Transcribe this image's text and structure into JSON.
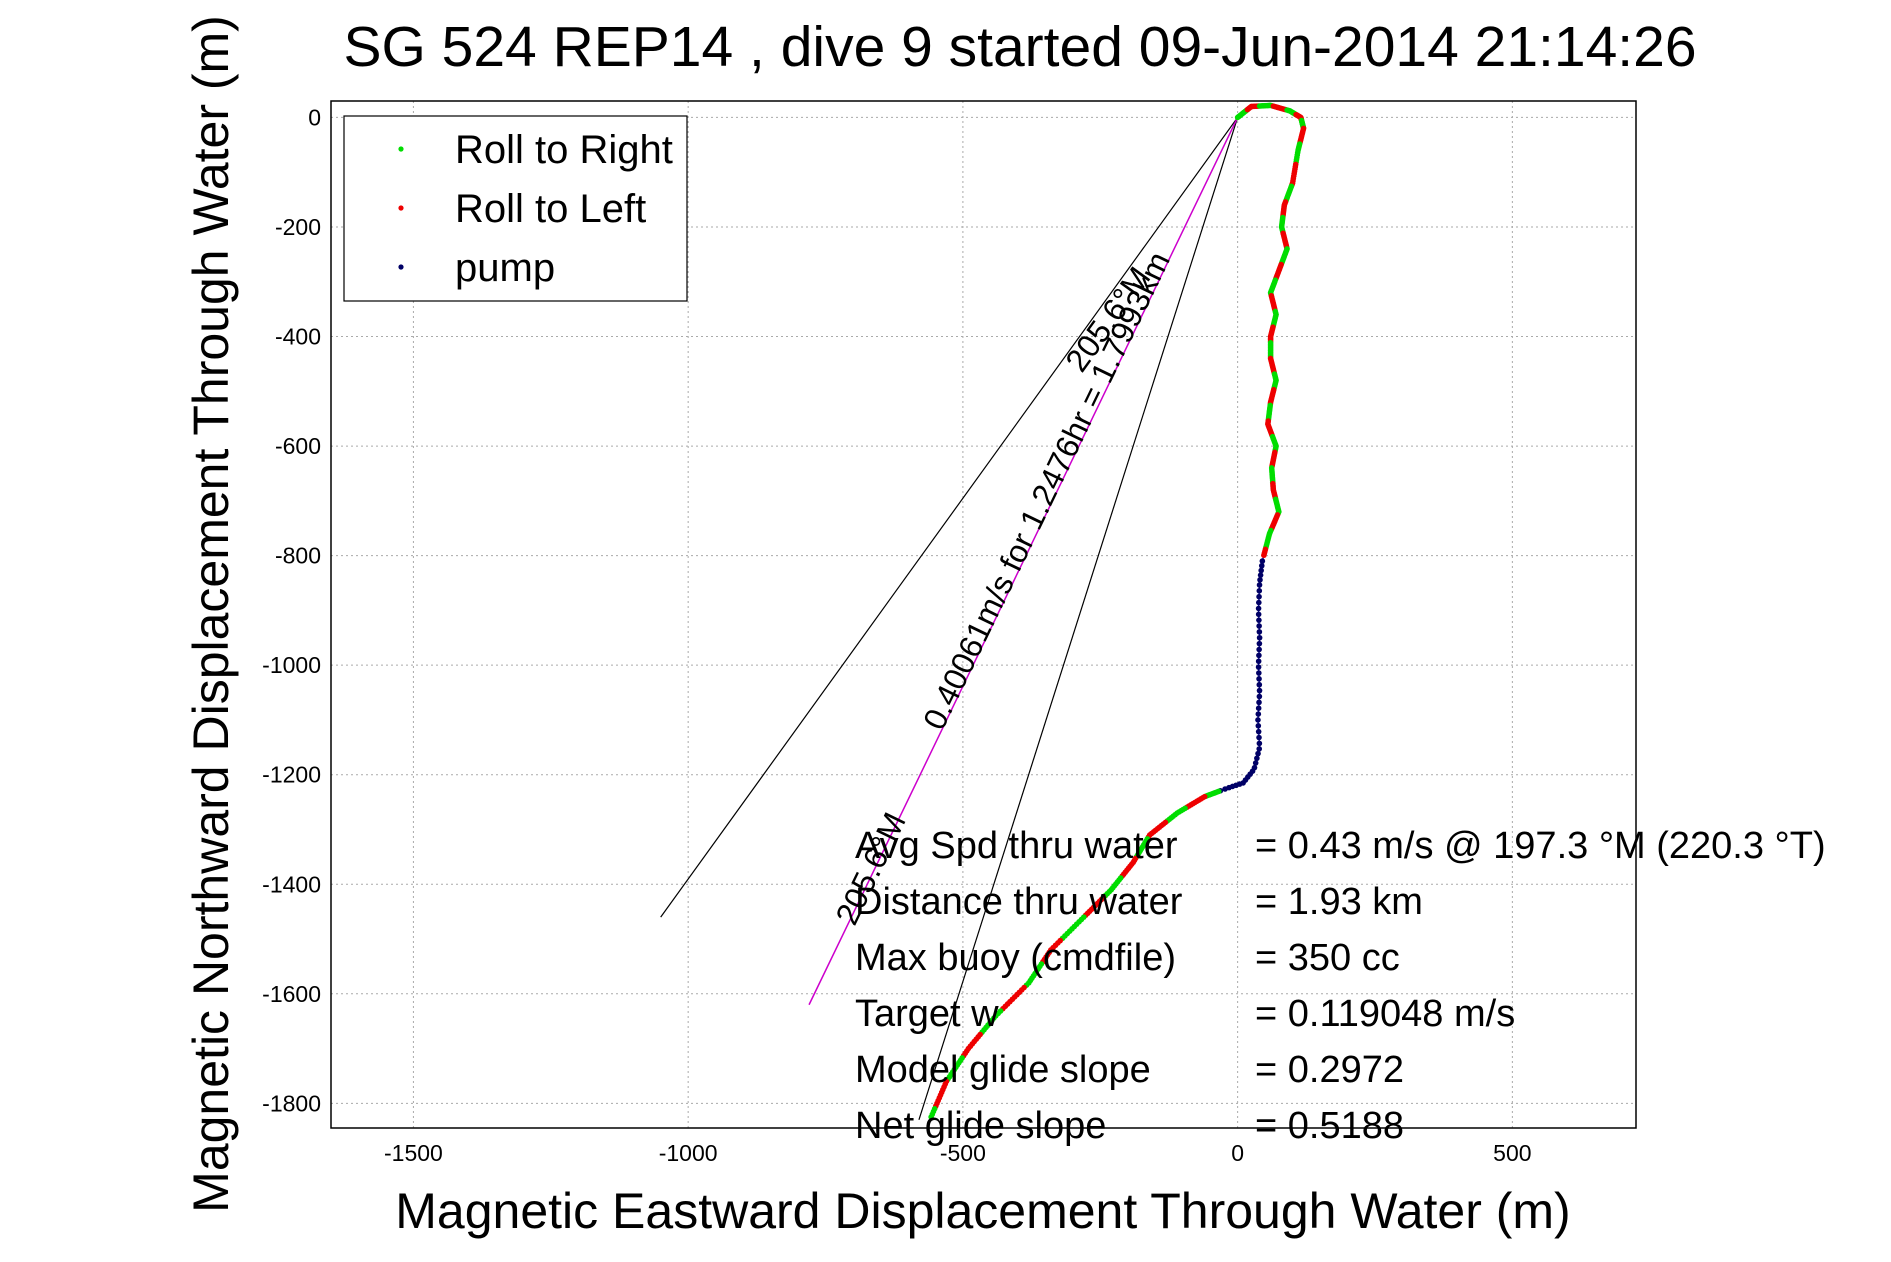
{
  "chart_data": {
    "type": "scatter",
    "title": "SG 524   REP14  , dive 9 started 09-Jun-2014 21:14:26",
    "xlabel": "Magnetic Eastward Displacement Through Water (m)",
    "ylabel": "Magnetic Northward Displacement Through Water (m)",
    "xlim": [
      -1650,
      725
    ],
    "ylim": [
      -1845,
      30
    ],
    "xticks": [
      -1500,
      -1000,
      -500,
      0,
      500
    ],
    "yticks": [
      0,
      -200,
      -400,
      -600,
      -800,
      -1000,
      -1200,
      -1400,
      -1600,
      -1800
    ],
    "grid": true,
    "legend_position": "top-left",
    "colors": {
      "roll_right": "#00dd00",
      "roll_left": "#ee0000",
      "pump": "#000066",
      "track": "#0000aa",
      "course": "#cc00cc",
      "cone": "#000000"
    },
    "legend": [
      {
        "label": "Roll to Right",
        "color": "#00dd00"
      },
      {
        "label": "Roll to Left",
        "color": "#ee0000"
      },
      {
        "label": "pump",
        "color": "#000066"
      }
    ],
    "track": [
      [
        0,
        0
      ],
      [
        25,
        20
      ],
      [
        60,
        22
      ],
      [
        95,
        12
      ],
      [
        115,
        0
      ],
      [
        120,
        -20
      ],
      [
        110,
        -60
      ],
      [
        100,
        -120
      ],
      [
        85,
        -160
      ],
      [
        80,
        -200
      ],
      [
        90,
        -240
      ],
      [
        75,
        -280
      ],
      [
        60,
        -320
      ],
      [
        70,
        -360
      ],
      [
        60,
        -400
      ],
      [
        60,
        -440
      ],
      [
        70,
        -480
      ],
      [
        60,
        -520
      ],
      [
        55,
        -560
      ],
      [
        70,
        -600
      ],
      [
        62,
        -640
      ],
      [
        65,
        -680
      ],
      [
        75,
        -720
      ],
      [
        58,
        -760
      ],
      [
        45,
        -810
      ],
      [
        40,
        -850
      ],
      [
        38,
        -900
      ],
      [
        40,
        -950
      ],
      [
        38,
        -1000
      ],
      [
        40,
        -1050
      ],
      [
        37,
        -1100
      ],
      [
        40,
        -1150
      ],
      [
        30,
        -1190
      ],
      [
        10,
        -1215
      ],
      [
        -20,
        -1225
      ],
      [
        -60,
        -1240
      ],
      [
        -110,
        -1270
      ],
      [
        -160,
        -1310
      ],
      [
        -190,
        -1360
      ],
      [
        -230,
        -1410
      ],
      [
        -280,
        -1460
      ],
      [
        -340,
        -1520
      ],
      [
        -380,
        -1580
      ],
      [
        -440,
        -1640
      ],
      [
        -490,
        -1700
      ],
      [
        -530,
        -1760
      ],
      [
        -560,
        -1830
      ]
    ],
    "pump_range_y": [
      -800,
      -1230
    ],
    "course_line": {
      "from": [
        0,
        0
      ],
      "to": [
        -780,
        -1620
      ],
      "label": "0.40061m/s for 1.2476hr = 1.7993km",
      "heading_label": "205.6°M"
    },
    "cone_lines": [
      {
        "from": [
          0,
          0
        ],
        "to": [
          -1050,
          -1460
        ],
        "label": "205.6°M"
      },
      {
        "from": [
          0,
          0
        ],
        "to": [
          -580,
          -1830
        ],
        "label": "205.6°M"
      }
    ],
    "info": [
      {
        "label": "Avg Spd thru water",
        "value": "=  0.43 m/s @ 197.3 °M (220.3 °T)"
      },
      {
        "label": "Distance thru water",
        "value": "=  1.93 km"
      },
      {
        "label": "Max buoy (cmdfile)",
        "value": "= 350 cc"
      },
      {
        "label": "Target w",
        "value": "= 0.119048 m/s"
      },
      {
        "label": "Model glide slope",
        "value": "= 0.2972"
      },
      {
        "label": "Net glide slope",
        "value": "= 0.5188"
      }
    ]
  }
}
